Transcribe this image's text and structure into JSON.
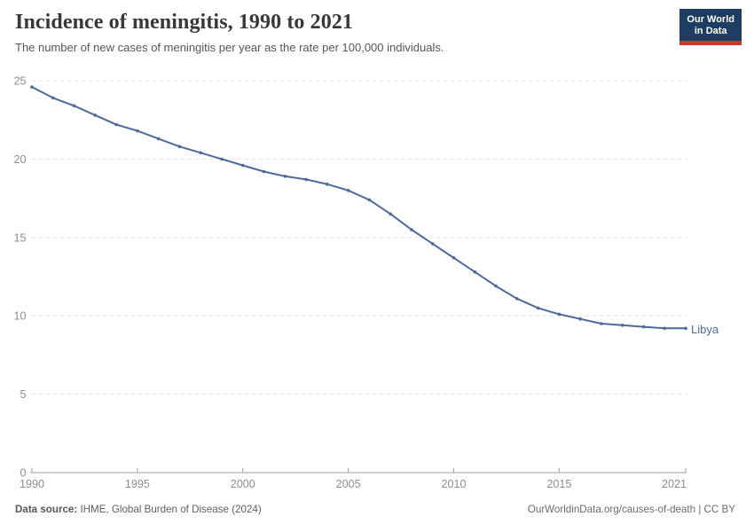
{
  "header": {
    "title": "Incidence of meningitis, 1990 to 2021",
    "subtitle": "The number of new cases of meningitis per year as the rate per 100,000 individuals.",
    "logo": {
      "line1": "Our World",
      "line2": "in Data"
    }
  },
  "chart_data": {
    "type": "line",
    "title": "Incidence of meningitis, 1990 to 2021",
    "x": [
      1990,
      1991,
      1992,
      1993,
      1994,
      1995,
      1996,
      1997,
      1998,
      1999,
      2000,
      2001,
      2002,
      2003,
      2004,
      2005,
      2006,
      2007,
      2008,
      2009,
      2010,
      2011,
      2012,
      2013,
      2014,
      2015,
      2016,
      2017,
      2018,
      2019,
      2020,
      2021
    ],
    "series": [
      {
        "name": "Libya",
        "color": "#4c6a9c",
        "values": [
          24.6,
          23.9,
          23.4,
          22.8,
          22.2,
          21.8,
          21.3,
          20.8,
          20.4,
          20.0,
          19.6,
          19.2,
          18.9,
          18.7,
          18.4,
          18.0,
          17.4,
          16.5,
          15.5,
          14.6,
          13.7,
          12.8,
          11.9,
          11.1,
          10.5,
          10.1,
          9.8,
          9.5,
          9.4,
          9.3,
          9.2,
          9.2
        ]
      }
    ],
    "x_ticks": [
      1990,
      1995,
      2000,
      2005,
      2010,
      2015,
      2021
    ],
    "y_ticks": [
      0,
      5,
      10,
      15,
      20,
      25
    ],
    "xlim": [
      1990,
      2021
    ],
    "ylim": [
      0,
      25
    ],
    "xlabel": "",
    "ylabel": "",
    "grid": "horizontal-dashed",
    "legend": "end-of-line-label",
    "end_label": "Libya"
  },
  "colors": {
    "line": "#4c6a9c",
    "grid": "#e2e2e2",
    "axis": "#a1a1a1",
    "axis_text": "#8d8d8d",
    "logo_bg": "#1d3d63",
    "logo_stripe": "#c6392c"
  },
  "footer": {
    "datasource_label": "Data source:",
    "datasource_value": " IHME, Global Burden of Disease (2024)",
    "credit": "OurWorldinData.org/causes-of-death | CC BY"
  }
}
